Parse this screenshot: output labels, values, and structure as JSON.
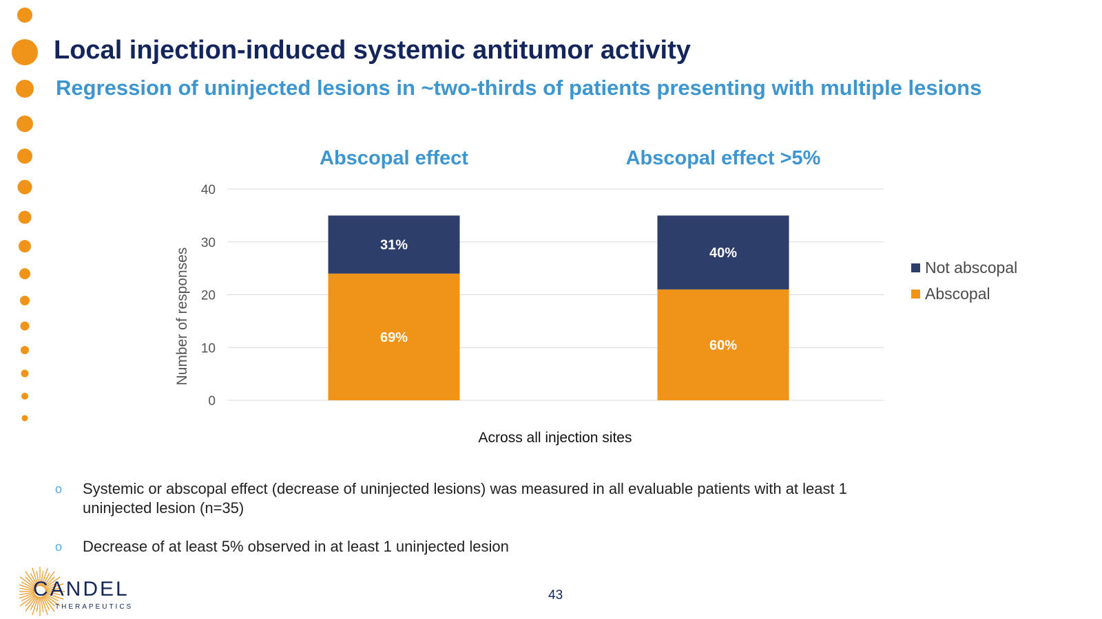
{
  "slide": {
    "title": "Local injection-induced systemic antitumor activity",
    "subtitle": "Regression of uninjected lesions in ~two-thirds of patients presenting with multiple lesions",
    "page_number": "43"
  },
  "chart_headings": [
    "Abscopal effect",
    "Abscopal effect >5%"
  ],
  "chart_data": {
    "type": "bar",
    "stacked": true,
    "title": "",
    "xlabel": "Across all injection sites",
    "ylabel": "Number of responses",
    "ylim": [
      0,
      40
    ],
    "yticks": [
      0,
      10,
      20,
      30,
      40
    ],
    "grid": true,
    "legend_position": "right",
    "categories": [
      "",
      ""
    ],
    "series": [
      {
        "name": "Abscopal",
        "color": "#ef9418",
        "values": [
          24,
          21
        ],
        "labels": [
          "69%",
          "60%"
        ]
      },
      {
        "name": "Not abscopal",
        "color": "#2d3e6b",
        "values": [
          11,
          14
        ],
        "labels": [
          "31%",
          "40%"
        ]
      }
    ]
  },
  "legend": [
    {
      "label": "Not abscopal",
      "color": "#2d3e6b"
    },
    {
      "label": "Abscopal",
      "color": "#ef9418"
    }
  ],
  "bullets": [
    "Systemic or abscopal effect (decrease of uninjected lesions) was measured in all evaluable patients with at least 1 uninjected lesion (n=35)",
    "Decrease of at least 5% observed in at least 1 uninjected lesion"
  ],
  "bullet_marker": "o",
  "logo": {
    "name": "CANDEL",
    "tagline": "THERAPEUTICS"
  },
  "colors": {
    "accent_orange": "#ef9418",
    "navy": "#14255c",
    "blue": "#3d96d0"
  }
}
